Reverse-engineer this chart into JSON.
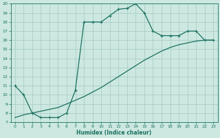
{
  "xlabel": "Humidex (Indice chaleur)",
  "bg_color": "#cce8e0",
  "grid_color": "#aacec8",
  "line_color": "#1a7060",
  "xlim": [
    -0.5,
    23.5
  ],
  "ylim": [
    7,
    20
  ],
  "xticks": [
    0,
    1,
    2,
    3,
    4,
    5,
    6,
    7,
    8,
    9,
    10,
    11,
    12,
    13,
    14,
    15,
    16,
    17,
    18,
    19,
    20,
    21,
    22,
    23
  ],
  "yticks": [
    7,
    8,
    9,
    10,
    11,
    12,
    13,
    14,
    15,
    16,
    17,
    18,
    19,
    20
  ],
  "line1_x": [
    0,
    1,
    2,
    3,
    4,
    5,
    6,
    7,
    8,
    9,
    10,
    11,
    12,
    13,
    14,
    15,
    16,
    17,
    18,
    19,
    20,
    21,
    22,
    23
  ],
  "line1_y": [
    11,
    10,
    8,
    7.5,
    7.5,
    7.5,
    8,
    10.5,
    18,
    18,
    18,
    18.7,
    19.4,
    19.5,
    20,
    19,
    17,
    16.5,
    16.5,
    16.5,
    17,
    17,
    16,
    16
  ],
  "line2_x": [
    0,
    1,
    2,
    3,
    4,
    5,
    6,
    7,
    8,
    9,
    10,
    11,
    12,
    13,
    14,
    15,
    16,
    17,
    18,
    19,
    20,
    21,
    22,
    23
  ],
  "line2_y": [
    7.5,
    7.8,
    8.0,
    8.2,
    8.4,
    8.6,
    9.0,
    9.4,
    9.8,
    10.3,
    10.8,
    11.4,
    12.0,
    12.6,
    13.2,
    13.8,
    14.3,
    14.8,
    15.2,
    15.5,
    15.7,
    15.9,
    16.0,
    16.0
  ]
}
